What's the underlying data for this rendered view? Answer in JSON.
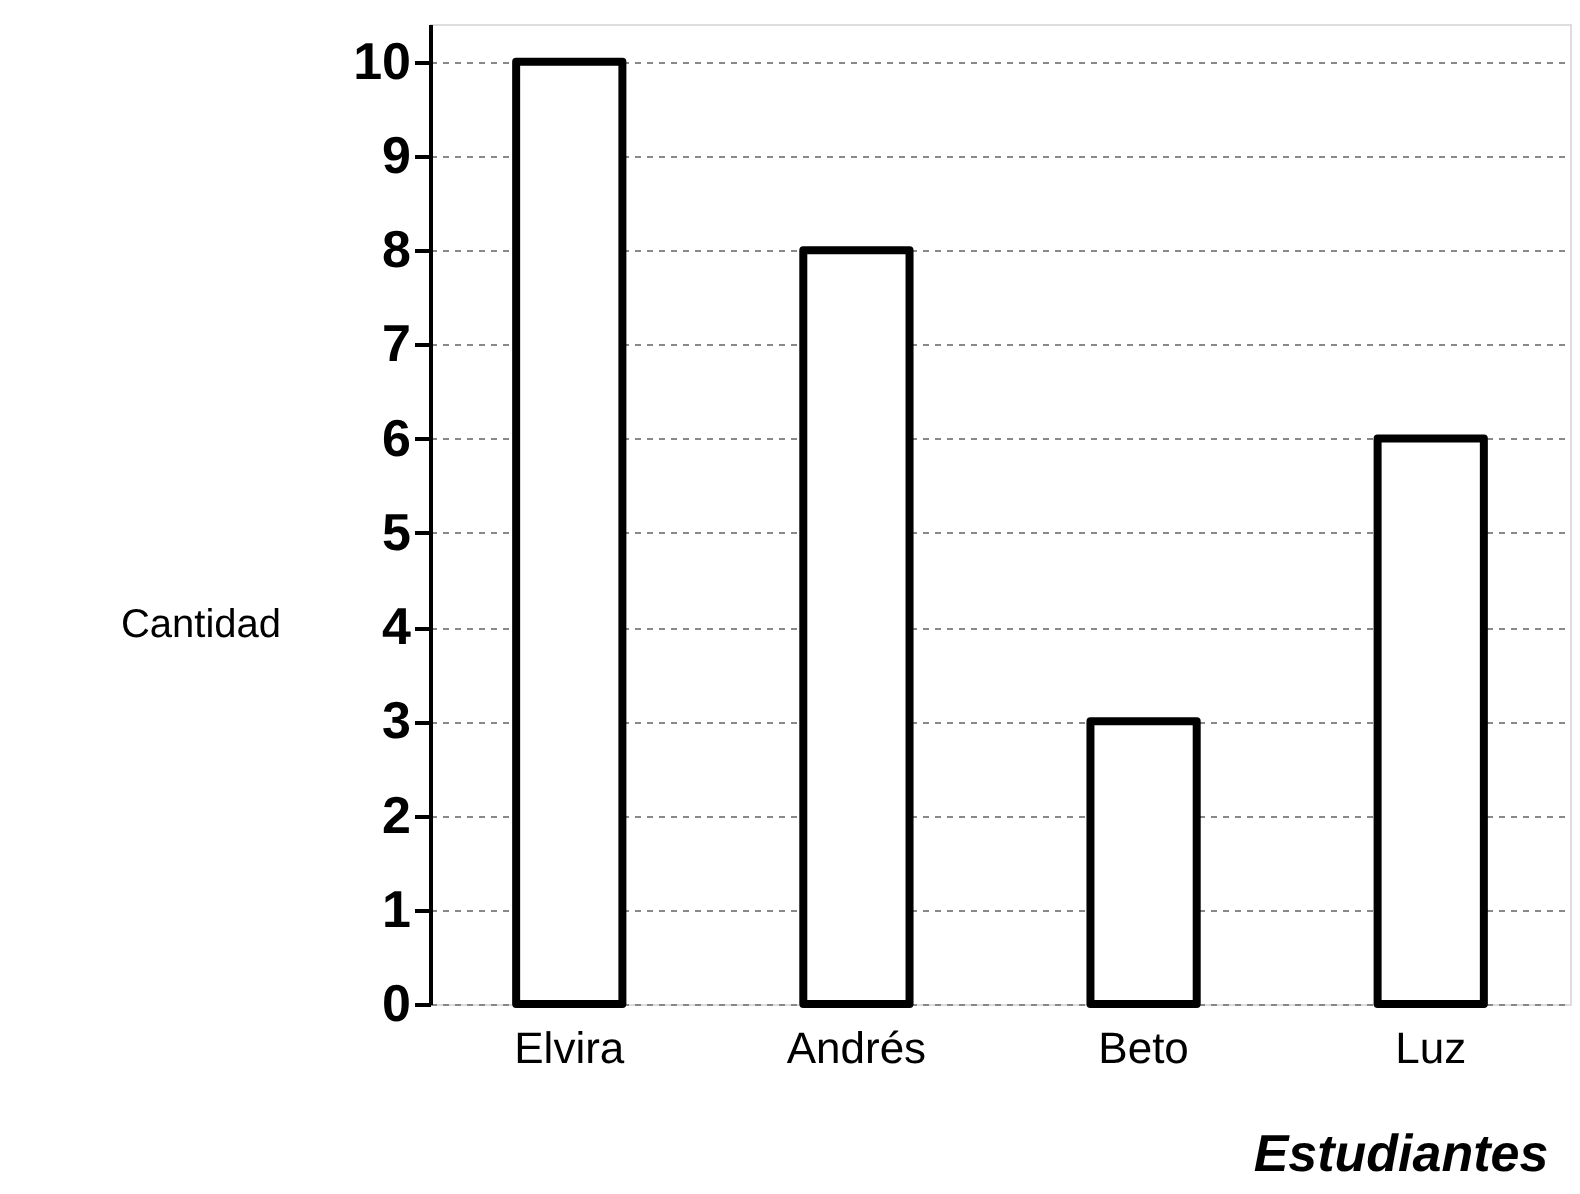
{
  "chart_data": {
    "type": "bar",
    "xlabel": "Estudiantes",
    "ylabel": "Cantidad",
    "categories": [
      "Elvira",
      "Andrés",
      "Beto",
      "Luz"
    ],
    "values": [
      10,
      8,
      3,
      6
    ],
    "color": "#ffffff",
    "ylim": [
      0,
      10.4
    ],
    "yticks": [
      0,
      1,
      2,
      3,
      4,
      5,
      6,
      7,
      8,
      9,
      10
    ],
    "grid": "y"
  }
}
